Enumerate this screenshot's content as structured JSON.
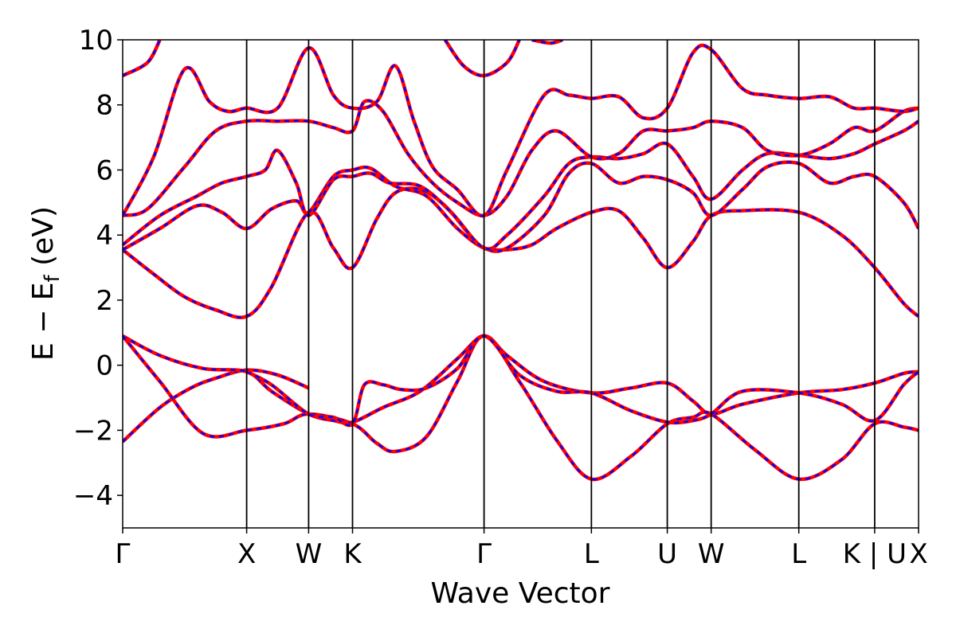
{
  "chart_data": {
    "type": "line",
    "title": "",
    "xlabel": "Wave Vector",
    "ylabel": "E − E_f (eV)",
    "ylim": [
      -5,
      10
    ],
    "yticks": [
      -4,
      -2,
      0,
      2,
      4,
      6,
      8,
      10
    ],
    "ytick_labels": [
      "−4",
      "−2",
      "0",
      "2",
      "4",
      "6",
      "8",
      "10"
    ],
    "grid": false,
    "legend": "none",
    "high_symbol_points": [
      {
        "label": "Γ",
        "x": 0.0
      },
      {
        "label": "X",
        "x": 1.0
      },
      {
        "label": "W",
        "x": 1.5
      },
      {
        "label": "K",
        "x": 1.854
      },
      {
        "label": "Γ",
        "x": 2.915
      },
      {
        "label": "L",
        "x": 3.781
      },
      {
        "label": "U",
        "x": 4.393
      },
      {
        "label": "W",
        "x": 4.747
      },
      {
        "label": "L",
        "x": 5.454
      },
      {
        "label": "K | U",
        "x": 6.066
      },
      {
        "label": "X",
        "x": 6.42
      }
    ],
    "xlim": [
      0,
      6.42
    ],
    "series_colors": {
      "solid": "#ff0000",
      "dashed": "#0000ff"
    },
    "bands": [
      [
        [
          0,
          -2.35
        ],
        [
          0.3,
          -1.3
        ],
        [
          0.55,
          -0.7
        ],
        [
          0.75,
          -0.4
        ],
        [
          1.0,
          -0.15
        ],
        [
          1.25,
          -0.3
        ],
        [
          1.5,
          -0.7
        ]
      ],
      [
        [
          0,
          0.9
        ],
        [
          0.3,
          0.3
        ],
        [
          0.65,
          -0.1
        ],
        [
          1.0,
          -0.2
        ],
        [
          1.2,
          -0.8
        ],
        [
          1.5,
          -1.5
        ],
        [
          1.7,
          -1.7
        ],
        [
          1.854,
          -1.75
        ],
        [
          2.1,
          -1.3
        ],
        [
          2.4,
          -0.8
        ],
        [
          2.7,
          0.2
        ],
        [
          2.915,
          0.9
        ],
        [
          3.1,
          0.3
        ],
        [
          3.4,
          -0.5
        ],
        [
          3.781,
          -0.85
        ],
        [
          4.1,
          -0.7
        ],
        [
          4.393,
          -0.55
        ],
        [
          4.6,
          -1.1
        ],
        [
          4.747,
          -1.5
        ],
        [
          5.0,
          -1.2
        ],
        [
          5.454,
          -0.85
        ],
        [
          5.8,
          -0.75
        ],
        [
          6.066,
          -0.55
        ],
        [
          6.3,
          -0.25
        ],
        [
          6.42,
          -0.2
        ]
      ],
      [
        [
          0,
          0.9
        ],
        [
          0.3,
          -0.5
        ],
        [
          0.65,
          -2.1
        ],
        [
          1.0,
          -2.0
        ],
        [
          1.3,
          -1.8
        ],
        [
          1.5,
          -1.5
        ],
        [
          1.854,
          -1.8
        ],
        [
          2.05,
          -2.4
        ],
        [
          2.2,
          -2.65
        ],
        [
          2.45,
          -2.2
        ],
        [
          2.7,
          -0.5
        ],
        [
          2.915,
          0.9
        ],
        [
          3.2,
          -0.5
        ],
        [
          3.5,
          -2.3
        ],
        [
          3.781,
          -3.5
        ],
        [
          4.1,
          -2.8
        ],
        [
          4.393,
          -1.8
        ],
        [
          4.6,
          -1.6
        ],
        [
          4.747,
          -1.5
        ],
        [
          5.1,
          -2.6
        ],
        [
          5.454,
          -3.5
        ],
        [
          5.8,
          -2.9
        ],
        [
          6.066,
          -1.8
        ],
        [
          6.3,
          -1.9
        ],
        [
          6.42,
          -2.0
        ]
      ],
      [
        [
          1.0,
          -0.2
        ],
        [
          1.2,
          -0.6
        ],
        [
          1.5,
          -1.5
        ],
        [
          1.7,
          -1.6
        ],
        [
          1.854,
          -1.8
        ],
        [
          1.95,
          -0.6
        ],
        [
          2.1,
          -0.6
        ],
        [
          2.25,
          -0.75
        ],
        [
          2.45,
          -0.7
        ],
        [
          2.7,
          -0.1
        ],
        [
          2.915,
          0.9
        ],
        [
          3.2,
          -0.3
        ],
        [
          3.5,
          -0.8
        ],
        [
          3.781,
          -0.85
        ],
        [
          4.1,
          -1.4
        ],
        [
          4.393,
          -1.75
        ],
        [
          4.6,
          -1.7
        ],
        [
          4.747,
          -1.5
        ],
        [
          5.0,
          -0.8
        ],
        [
          5.454,
          -0.85
        ],
        [
          5.8,
          -1.2
        ],
        [
          6.066,
          -1.7
        ],
        [
          6.3,
          -0.6
        ],
        [
          6.42,
          -0.2
        ]
      ],
      [
        [
          0,
          3.55
        ],
        [
          0.25,
          2.8
        ],
        [
          0.5,
          2.1
        ],
        [
          0.75,
          1.7
        ],
        [
          1.0,
          1.5
        ],
        [
          1.2,
          2.4
        ],
        [
          1.5,
          4.7
        ],
        [
          1.7,
          3.6
        ],
        [
          1.854,
          3.0
        ],
        [
          2.05,
          4.5
        ],
        [
          2.2,
          5.3
        ],
        [
          2.4,
          5.4
        ],
        [
          2.6,
          4.9
        ],
        [
          2.8,
          4.0
        ],
        [
          2.915,
          3.6
        ],
        [
          3.1,
          3.55
        ],
        [
          3.3,
          3.7
        ],
        [
          3.5,
          4.2
        ],
        [
          3.781,
          4.7
        ],
        [
          4.0,
          4.75
        ],
        [
          4.2,
          3.9
        ],
        [
          4.393,
          3.0
        ],
        [
          4.6,
          3.8
        ],
        [
          4.747,
          4.6
        ],
        [
          5.0,
          4.75
        ],
        [
          5.454,
          4.7
        ],
        [
          5.8,
          4.0
        ],
        [
          6.066,
          3.0
        ],
        [
          6.3,
          1.9
        ],
        [
          6.42,
          1.5
        ]
      ],
      [
        [
          0,
          3.55
        ],
        [
          0.3,
          4.2
        ],
        [
          0.6,
          4.9
        ],
        [
          0.8,
          4.7
        ],
        [
          1.0,
          4.2
        ],
        [
          1.2,
          4.8
        ],
        [
          1.4,
          5.05
        ],
        [
          1.5,
          4.7
        ],
        [
          1.7,
          5.8
        ],
        [
          1.854,
          6.0
        ],
        [
          2.0,
          6.05
        ],
        [
          2.2,
          5.5
        ],
        [
          2.45,
          5.2
        ],
        [
          2.7,
          4.2
        ],
        [
          2.915,
          3.6
        ],
        [
          3.1,
          3.6
        ],
        [
          3.4,
          4.6
        ],
        [
          3.6,
          5.9
        ],
        [
          3.781,
          6.2
        ],
        [
          4.0,
          5.6
        ],
        [
          4.2,
          5.8
        ],
        [
          4.393,
          5.7
        ],
        [
          4.6,
          5.3
        ],
        [
          4.747,
          4.6
        ],
        [
          5.0,
          5.4
        ],
        [
          5.2,
          6.1
        ],
        [
          5.454,
          6.2
        ],
        [
          5.7,
          5.6
        ],
        [
          5.9,
          5.8
        ],
        [
          6.066,
          5.8
        ],
        [
          6.3,
          5.0
        ],
        [
          6.42,
          4.2
        ]
      ],
      [
        [
          0,
          3.7
        ],
        [
          0.3,
          4.6
        ],
        [
          0.6,
          5.2
        ],
        [
          0.8,
          5.6
        ],
        [
          1.0,
          5.8
        ],
        [
          1.15,
          6.0
        ],
        [
          1.25,
          6.6
        ],
        [
          1.4,
          5.6
        ],
        [
          1.5,
          4.6
        ],
        [
          1.7,
          5.7
        ],
        [
          1.854,
          5.8
        ],
        [
          2.0,
          5.9
        ],
        [
          2.15,
          5.6
        ],
        [
          2.4,
          5.5
        ],
        [
          2.65,
          4.7
        ],
        [
          2.915,
          3.6
        ],
        [
          3.1,
          4.0
        ],
        [
          3.4,
          5.2
        ],
        [
          3.6,
          6.2
        ],
        [
          3.781,
          6.4
        ],
        [
          4.0,
          6.35
        ],
        [
          4.2,
          6.5
        ],
        [
          4.393,
          6.8
        ],
        [
          4.6,
          5.8
        ],
        [
          4.747,
          5.1
        ],
        [
          5.0,
          6.0
        ],
        [
          5.2,
          6.5
        ],
        [
          5.454,
          6.45
        ],
        [
          5.7,
          6.35
        ],
        [
          5.9,
          6.5
        ],
        [
          6.066,
          6.8
        ],
        [
          6.3,
          7.2
        ],
        [
          6.42,
          7.5
        ]
      ],
      [
        [
          0,
          4.6
        ],
        [
          0.2,
          4.8
        ],
        [
          0.5,
          6.1
        ],
        [
          0.75,
          7.2
        ],
        [
          1.0,
          7.5
        ],
        [
          1.25,
          7.5
        ],
        [
          1.5,
          7.5
        ],
        [
          1.7,
          7.3
        ],
        [
          1.854,
          7.2
        ],
        [
          1.95,
          8.1
        ],
        [
          2.1,
          7.8
        ],
        [
          2.3,
          6.5
        ],
        [
          2.5,
          5.6
        ],
        [
          2.7,
          5.0
        ],
        [
          2.915,
          4.6
        ],
        [
          3.1,
          5.2
        ],
        [
          3.3,
          6.6
        ],
        [
          3.5,
          7.2
        ],
        [
          3.781,
          6.4
        ],
        [
          4.0,
          6.5
        ],
        [
          4.2,
          7.2
        ],
        [
          4.393,
          7.2
        ],
        [
          4.6,
          7.3
        ],
        [
          4.747,
          7.5
        ],
        [
          5.0,
          7.3
        ],
        [
          5.2,
          6.6
        ],
        [
          5.454,
          6.45
        ],
        [
          5.7,
          6.8
        ],
        [
          5.9,
          7.3
        ],
        [
          6.066,
          7.2
        ],
        [
          6.3,
          7.8
        ],
        [
          6.42,
          7.9
        ]
      ],
      [
        [
          0,
          4.6
        ],
        [
          0.25,
          6.4
        ],
        [
          0.5,
          9.1
        ],
        [
          0.7,
          8.1
        ],
        [
          0.85,
          7.8
        ],
        [
          1.0,
          7.9
        ],
        [
          1.25,
          7.9
        ],
        [
          1.5,
          9.75
        ],
        [
          1.7,
          8.3
        ],
        [
          1.854,
          7.9
        ],
        [
          2.05,
          8.1
        ],
        [
          2.2,
          9.2
        ],
        [
          2.35,
          7.5
        ],
        [
          2.5,
          6.1
        ],
        [
          2.7,
          5.4
        ],
        [
          2.915,
          4.6
        ],
        [
          3.1,
          6.0
        ],
        [
          3.4,
          8.3
        ],
        [
          3.6,
          8.3
        ],
        [
          3.781,
          8.2
        ],
        [
          4.0,
          8.25
        ],
        [
          4.2,
          7.6
        ],
        [
          4.393,
          7.9
        ],
        [
          4.6,
          9.6
        ],
        [
          4.747,
          9.7
        ],
        [
          5.0,
          8.5
        ],
        [
          5.2,
          8.3
        ],
        [
          5.454,
          8.2
        ],
        [
          5.7,
          8.25
        ],
        [
          5.9,
          7.9
        ],
        [
          6.066,
          7.9
        ],
        [
          6.3,
          7.8
        ],
        [
          6.42,
          7.9
        ]
      ],
      [
        [
          0,
          8.9
        ],
        [
          0.2,
          9.3
        ],
        [
          0.3,
          10.0
        ]
      ],
      [
        [
          2.6,
          10.0
        ],
        [
          2.75,
          9.2
        ],
        [
          2.915,
          8.9
        ],
        [
          3.1,
          9.3
        ],
        [
          3.2,
          10.0
        ]
      ],
      [
        [
          3.3,
          10.0
        ],
        [
          3.45,
          9.9
        ],
        [
          3.55,
          10.0
        ]
      ]
    ]
  }
}
